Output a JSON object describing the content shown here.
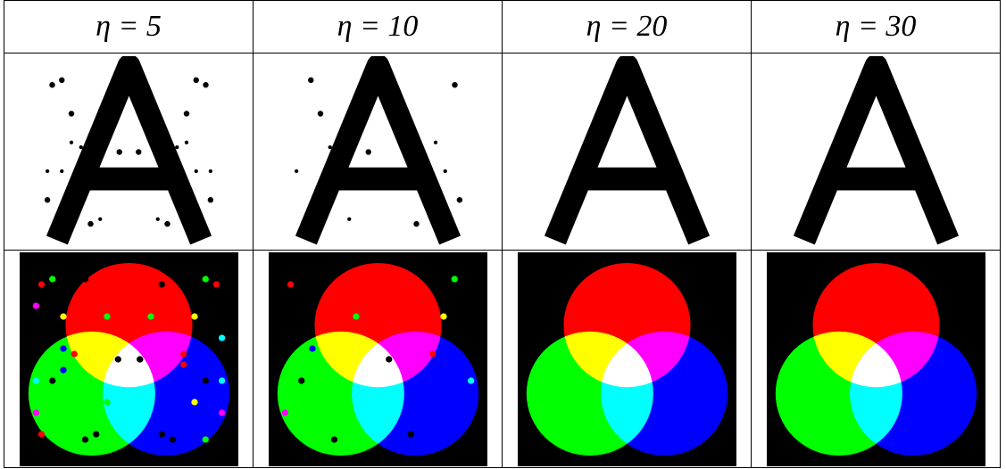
{
  "table": {
    "header": [
      "η = 5",
      "η = 10",
      "η = 20",
      "η = 30"
    ]
  }
}
